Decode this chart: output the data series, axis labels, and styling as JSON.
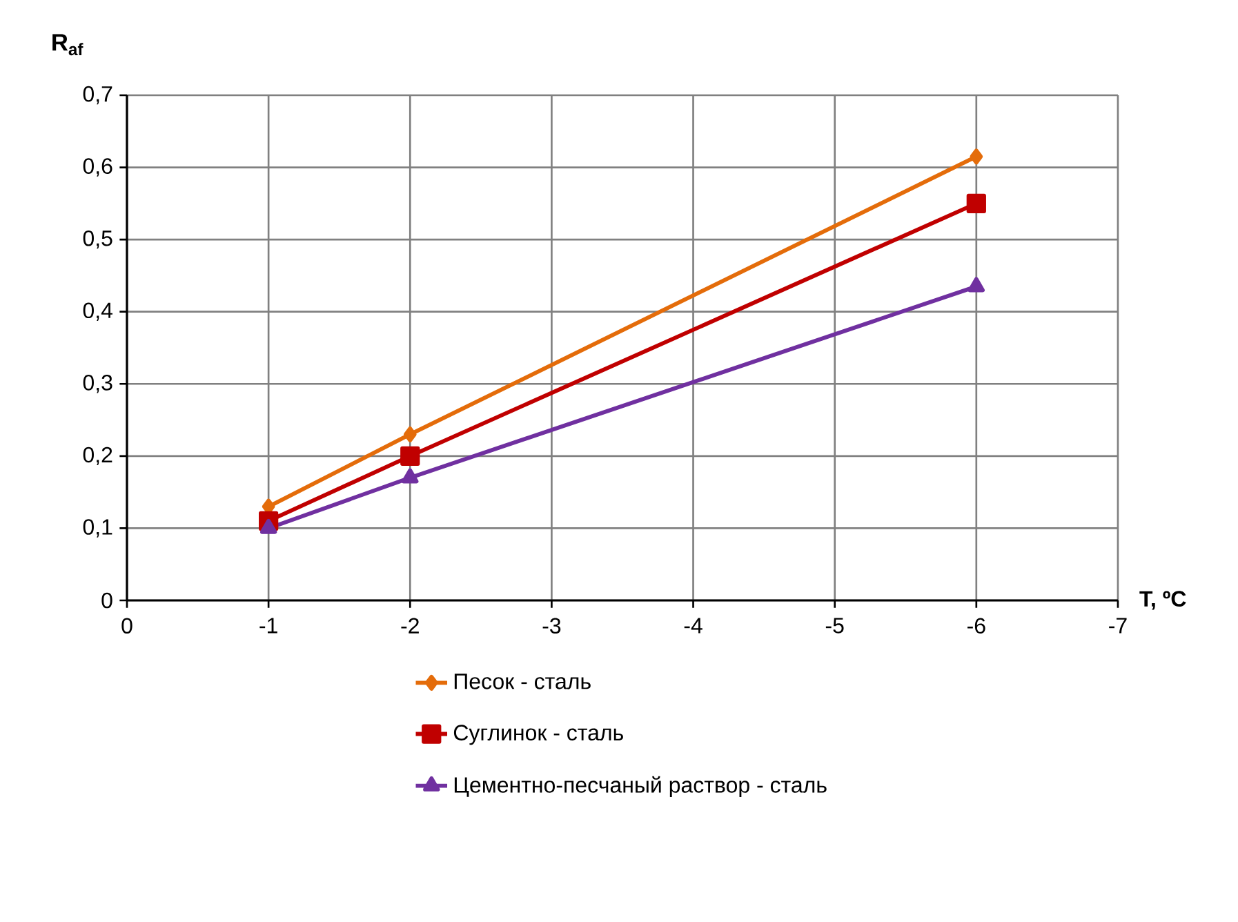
{
  "chart_data": {
    "type": "line",
    "xlabel": "T, ºC",
    "ylabel": "R$_{af}$",
    "x": [
      -1,
      -2,
      -6
    ],
    "series": [
      {
        "name": "Песок - сталь",
        "color": "#e46c0a",
        "marker": "diamond",
        "values": [
          0.13,
          0.23,
          0.615
        ]
      },
      {
        "name": "Суглинок - сталь",
        "color": "#c00000",
        "marker": "square",
        "values": [
          0.11,
          0.2,
          0.55
        ]
      },
      {
        "name": "Цементно-песчаный раствор  - сталь",
        "color": "#7030a0",
        "marker": "triangle",
        "values": [
          0.1,
          0.17,
          0.435
        ]
      }
    ],
    "xlim": [
      0,
      -7
    ],
    "xticks": [
      0,
      -1,
      -2,
      -3,
      -4,
      -5,
      -6,
      -7
    ],
    "ylim": [
      0,
      0.7
    ],
    "yticks": [
      0,
      {
        "value": 0.1,
        "label": "0,1"
      },
      {
        "value": 0.2,
        "label": "0,2"
      },
      {
        "value": 0.3,
        "label": "0,3"
      },
      {
        "value": 0.4,
        "label": "0,4"
      },
      {
        "value": 0.5,
        "label": "0,5"
      },
      {
        "value": 0.6,
        "label": "0,6"
      },
      {
        "value": 0.7,
        "label": "0,7"
      }
    ],
    "grid": true,
    "legend": "bottom",
    "line_style": "solid"
  }
}
